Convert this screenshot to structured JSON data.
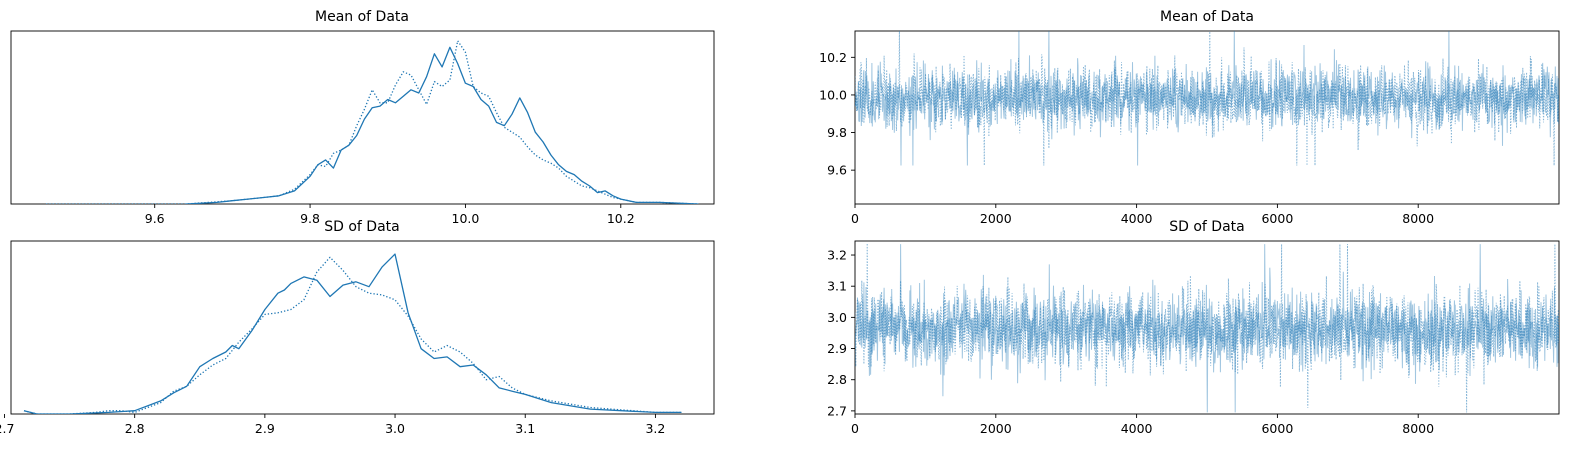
{
  "accent_color": "#1f77b4",
  "chart_data": [
    {
      "type": "line",
      "subtype": "kde",
      "title": "Mean of Data",
      "xlabel": "",
      "ylabel": "",
      "xlim": [
        9.415,
        10.32
      ],
      "xticks": [
        9.6,
        9.8,
        10.0,
        10.2
      ],
      "xtick_labels": [
        "9.6",
        "9.8",
        "10.0",
        "10.2"
      ],
      "yticks": [],
      "ylim": [
        0,
        1.06
      ],
      "grid": false,
      "series": [
        {
          "style": "solid",
          "x": [
            9.64,
            9.68,
            9.7,
            9.72,
            9.74,
            9.76,
            9.78,
            9.8,
            9.81,
            9.82,
            9.83,
            9.84,
            9.85,
            9.86,
            9.87,
            9.88,
            9.89,
            9.9,
            9.91,
            9.92,
            9.93,
            9.94,
            9.95,
            9.96,
            9.97,
            9.98,
            9.99,
            10.0,
            10.01,
            10.02,
            10.03,
            10.04,
            10.05,
            10.06,
            10.07,
            10.08,
            10.09,
            10.1,
            10.11,
            10.12,
            10.13,
            10.14,
            10.15,
            10.16,
            10.17,
            10.18,
            10.19,
            10.2,
            10.22,
            10.25,
            10.3
          ],
          "values": [
            0.0,
            0.01,
            0.02,
            0.03,
            0.04,
            0.05,
            0.08,
            0.17,
            0.24,
            0.27,
            0.22,
            0.33,
            0.36,
            0.42,
            0.52,
            0.59,
            0.6,
            0.64,
            0.62,
            0.66,
            0.7,
            0.68,
            0.78,
            0.92,
            0.84,
            0.96,
            0.86,
            0.74,
            0.72,
            0.64,
            0.6,
            0.5,
            0.48,
            0.55,
            0.65,
            0.56,
            0.44,
            0.38,
            0.3,
            0.24,
            0.2,
            0.18,
            0.14,
            0.11,
            0.07,
            0.08,
            0.05,
            0.03,
            0.01,
            0.01,
            0.0
          ]
        },
        {
          "style": "dotted",
          "x": [
            9.46,
            9.55,
            9.64,
            9.7,
            9.74,
            9.76,
            9.78,
            9.8,
            9.81,
            9.82,
            9.83,
            9.84,
            9.85,
            9.86,
            9.87,
            9.88,
            9.89,
            9.9,
            9.91,
            9.92,
            9.93,
            9.94,
            9.95,
            9.96,
            9.97,
            9.98,
            9.99,
            10.0,
            10.01,
            10.02,
            10.03,
            10.04,
            10.05,
            10.06,
            10.07,
            10.08,
            10.09,
            10.1,
            10.11,
            10.12,
            10.13,
            10.14,
            10.15,
            10.16,
            10.17,
            10.18,
            10.19,
            10.2,
            10.22,
            10.25,
            10.3
          ],
          "values": [
            0.0,
            0.0,
            0.0,
            0.02,
            0.04,
            0.05,
            0.09,
            0.18,
            0.24,
            0.23,
            0.31,
            0.33,
            0.36,
            0.48,
            0.58,
            0.7,
            0.62,
            0.62,
            0.73,
            0.81,
            0.79,
            0.7,
            0.61,
            0.75,
            0.72,
            0.76,
            1.0,
            0.93,
            0.72,
            0.68,
            0.66,
            0.56,
            0.47,
            0.44,
            0.41,
            0.35,
            0.3,
            0.27,
            0.25,
            0.22,
            0.17,
            0.14,
            0.11,
            0.1,
            0.08,
            0.06,
            0.04,
            0.03,
            0.01,
            0.01,
            0.0
          ]
        }
      ]
    },
    {
      "type": "line",
      "subtype": "trace",
      "title": "Mean of Data",
      "xlabel": "",
      "ylabel": "",
      "xlim": [
        0,
        10000
      ],
      "ylim": [
        9.42,
        10.34
      ],
      "xticks": [
        0,
        2000,
        4000,
        6000,
        8000
      ],
      "xtick_labels": [
        "0",
        "2000",
        "4000",
        "6000",
        "8000"
      ],
      "yticks": [
        9.6,
        9.8,
        10.0,
        10.2
      ],
      "ytick_labels": [
        "9.6",
        "9.8",
        "10.0",
        "10.2"
      ],
      "grid": false,
      "n_draws": 10000,
      "center": 9.985,
      "spread": 0.08,
      "series_styles": [
        "solid",
        "dotted"
      ],
      "seed": 11
    },
    {
      "type": "line",
      "subtype": "kde",
      "title": "SD of Data",
      "xlabel": "",
      "ylabel": "",
      "xlim": [
        2.705,
        3.245
      ],
      "xticks": [
        2.7,
        2.8,
        2.9,
        3.0,
        3.1,
        3.2
      ],
      "xtick_labels": [
        "2.7",
        "2.8",
        "2.9",
        "3.0",
        "3.1",
        "3.2"
      ],
      "yticks": [],
      "ylim": [
        0,
        1.06
      ],
      "grid": false,
      "series": [
        {
          "style": "solid",
          "x": [
            2.715,
            2.725,
            2.75,
            2.78,
            2.8,
            2.82,
            2.83,
            2.84,
            2.85,
            2.86,
            2.87,
            2.875,
            2.88,
            2.89,
            2.9,
            2.91,
            2.915,
            2.92,
            2.93,
            2.94,
            2.95,
            2.96,
            2.97,
            2.98,
            2.99,
            3.0,
            3.01,
            3.02,
            3.03,
            3.04,
            3.05,
            3.06,
            3.07,
            3.08,
            3.09,
            3.1,
            3.12,
            3.15,
            3.2,
            3.22
          ],
          "values": [
            0.02,
            0.0,
            0.0,
            0.01,
            0.02,
            0.08,
            0.13,
            0.17,
            0.29,
            0.34,
            0.38,
            0.42,
            0.4,
            0.51,
            0.64,
            0.74,
            0.76,
            0.8,
            0.84,
            0.82,
            0.72,
            0.79,
            0.81,
            0.78,
            0.9,
            0.98,
            0.62,
            0.4,
            0.34,
            0.35,
            0.29,
            0.3,
            0.24,
            0.16,
            0.14,
            0.12,
            0.07,
            0.03,
            0.01,
            0.01
          ]
        },
        {
          "style": "dotted",
          "x": [
            2.715,
            2.725,
            2.75,
            2.77,
            2.78,
            2.79,
            2.8,
            2.82,
            2.83,
            2.84,
            2.85,
            2.86,
            2.87,
            2.88,
            2.89,
            2.9,
            2.91,
            2.92,
            2.93,
            2.94,
            2.95,
            2.96,
            2.97,
            2.98,
            2.99,
            3.0,
            3.01,
            3.02,
            3.03,
            3.04,
            3.05,
            3.06,
            3.07,
            3.08,
            3.09,
            3.1,
            3.12,
            3.15,
            3.2,
            3.22
          ],
          "values": [
            0.02,
            0.0,
            0.0,
            0.01,
            0.02,
            0.02,
            0.01,
            0.07,
            0.14,
            0.17,
            0.24,
            0.3,
            0.34,
            0.44,
            0.52,
            0.61,
            0.62,
            0.64,
            0.7,
            0.87,
            0.96,
            0.88,
            0.78,
            0.74,
            0.73,
            0.7,
            0.6,
            0.46,
            0.38,
            0.42,
            0.38,
            0.31,
            0.21,
            0.23,
            0.16,
            0.12,
            0.08,
            0.04,
            0.01,
            0.01
          ]
        }
      ]
    },
    {
      "type": "line",
      "subtype": "trace",
      "title": "SD of Data",
      "xlabel": "",
      "ylabel": "",
      "xlim": [
        0,
        10000
      ],
      "ylim": [
        2.69,
        3.245
      ],
      "xticks": [
        0,
        2000,
        4000,
        6000,
        8000
      ],
      "xtick_labels": [
        "0",
        "2000",
        "4000",
        "6000",
        "8000"
      ],
      "yticks": [
        2.7,
        2.8,
        2.9,
        3.0,
        3.1,
        3.2
      ],
      "ytick_labels": [
        "2.7",
        "2.8",
        "2.9",
        "3.0",
        "3.1",
        "3.2"
      ],
      "grid": false,
      "n_draws": 10000,
      "center": 2.965,
      "spread": 0.06,
      "series_styles": [
        "solid",
        "dotted"
      ],
      "seed": 23
    }
  ]
}
